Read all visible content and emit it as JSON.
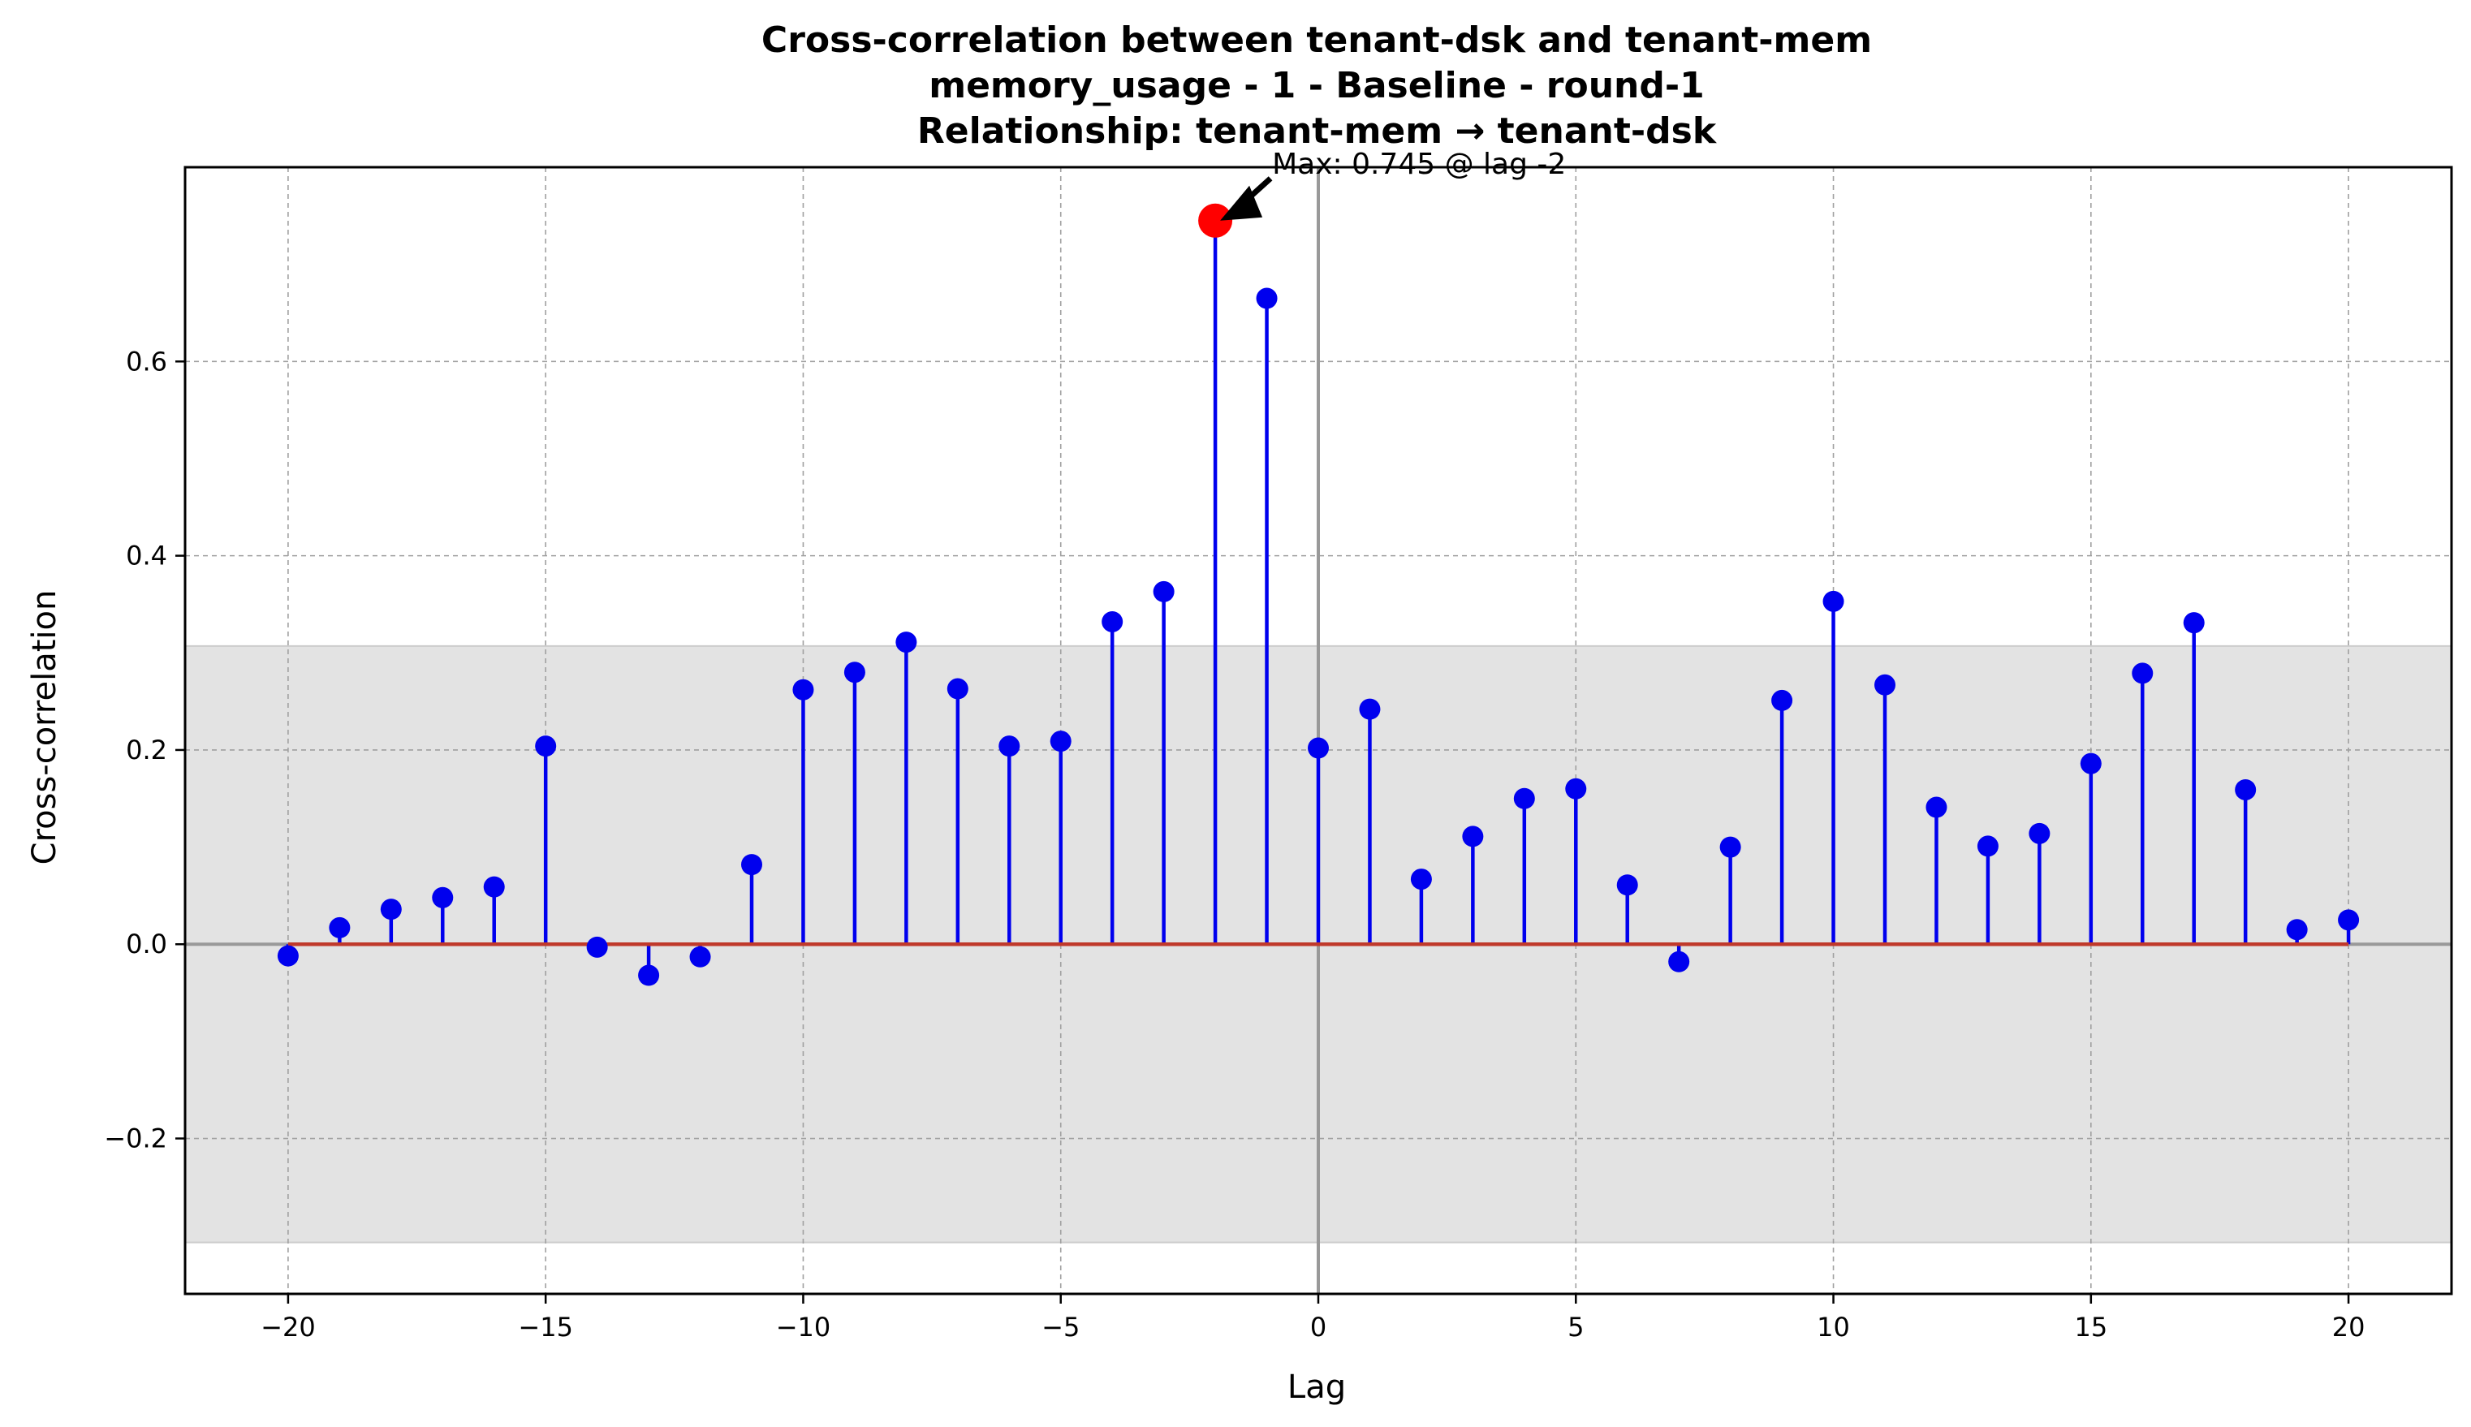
{
  "chart_data": {
    "type": "stem",
    "title_lines": [
      "Cross-correlation between tenant-dsk and tenant-mem",
      "memory_usage - 1 - Baseline - round-1",
      "Relationship: tenant-mem → tenant-dsk"
    ],
    "xlabel": "Lag",
    "ylabel": "Cross-correlation",
    "xlim": [
      -22,
      22
    ],
    "ylim": [
      -0.36,
      0.8
    ],
    "xticks": [
      -20,
      -15,
      -10,
      -5,
      0,
      5,
      10,
      15,
      20
    ],
    "yticks": [
      -0.2,
      0.0,
      0.2,
      0.4,
      0.6
    ],
    "grid": true,
    "confidence_band": [
      -0.307,
      0.307
    ],
    "series": [
      {
        "x": [
          -20,
          -19,
          -18,
          -17,
          -16,
          -15,
          -14,
          -13,
          -12,
          -11,
          -10,
          -9,
          -8,
          -7,
          -6,
          -5,
          -4,
          -3,
          -2,
          -1,
          0,
          1,
          2,
          3,
          4,
          5,
          6,
          7,
          8,
          9,
          10,
          11,
          12,
          13,
          14,
          15,
          16,
          17,
          18,
          19,
          20
        ],
        "values": [
          -0.012,
          0.017,
          0.036,
          0.048,
          0.059,
          0.204,
          -0.003,
          -0.032,
          -0.013,
          0.082,
          0.262,
          0.28,
          0.311,
          0.263,
          0.204,
          0.209,
          0.332,
          0.363,
          0.745,
          0.665,
          0.202,
          0.242,
          0.067,
          0.111,
          0.15,
          0.16,
          0.061,
          -0.018,
          0.1,
          0.251,
          0.353,
          0.267,
          0.141,
          0.101,
          0.114,
          0.186,
          0.279,
          0.331,
          0.159,
          0.015,
          0.025
        ]
      }
    ],
    "peak": {
      "lag": -2,
      "value": 0.745
    },
    "annotation": "Max: 0.745 @ lag -2",
    "colors": {
      "stem": "#0000ee",
      "marker": "#0000ee",
      "peak_marker": "#ff0000",
      "baseline": "#c0392b",
      "band": "#e3e3e3",
      "grid": "#a0a0a0",
      "zero_line": "#999999"
    }
  }
}
